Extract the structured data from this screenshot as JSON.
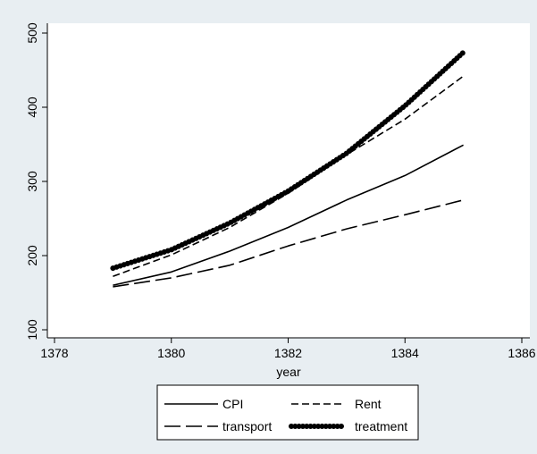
{
  "chart_data": {
    "type": "line",
    "title": "",
    "xlabel": "year",
    "ylabel": "",
    "x": [
      1379,
      1380,
      1381,
      1382,
      1383,
      1384,
      1385
    ],
    "xlim": [
      1378,
      1386
    ],
    "ylim": [
      100,
      500
    ],
    "xticks": [
      1378,
      1380,
      1382,
      1384,
      1386
    ],
    "yticks": [
      100,
      200,
      300,
      400,
      500
    ],
    "grid": false,
    "legend_position": "bottom",
    "series": [
      {
        "name": "CPI",
        "style": "solid",
        "values": [
          160,
          178,
          206,
          238,
          275,
          308,
          349
        ]
      },
      {
        "name": "Rent",
        "style": "short-dash",
        "values": [
          172,
          201,
          238,
          284,
          336,
          384,
          442
        ]
      },
      {
        "name": "transport",
        "style": "long-dash",
        "values": [
          158,
          170,
          187,
          213,
          236,
          255,
          275
        ]
      },
      {
        "name": "treatment",
        "style": "thick-dots",
        "values": [
          183,
          208,
          244,
          287,
          338,
          402,
          474
        ]
      }
    ],
    "colors": {
      "background": "#e8eef2",
      "plot_background": "#ffffff",
      "line": "#000000"
    }
  }
}
